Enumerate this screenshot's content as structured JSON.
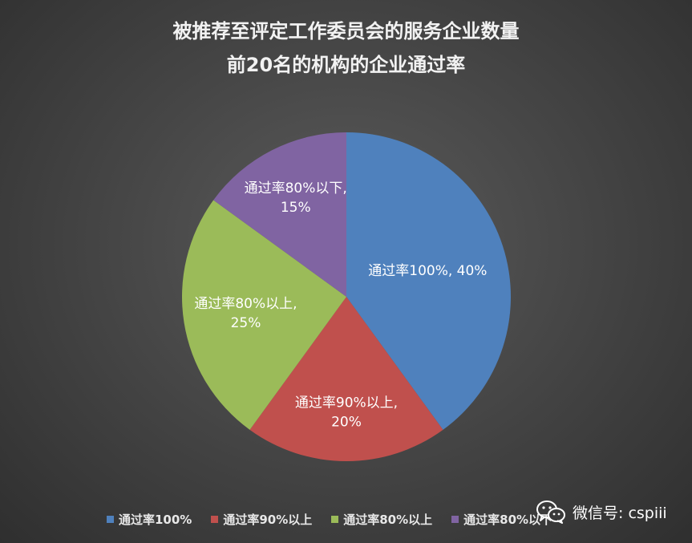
{
  "chart_data": {
    "type": "pie",
    "title_lines": [
      "被推荐至评定工作委员会的服务企业数量",
      "前20名的机构的企业通过率"
    ],
    "categories": [
      "通过率100%",
      "通过率90%以上",
      "通过率80%以上",
      "通过率80%以下"
    ],
    "values": [
      40,
      20,
      25,
      15
    ],
    "colors": [
      "#4f81bd",
      "#c0504d",
      "#9bbb59",
      "#8064a2"
    ],
    "data_labels": [
      [
        "通过率100%, 40%"
      ],
      [
        "通过率90%以上,",
        "20%"
      ],
      [
        "通过率80%以上,",
        "25%"
      ],
      [
        "通过率80%以下,",
        "15%"
      ]
    ],
    "start_angle_deg": 0,
    "direction": "clockwise",
    "legend_position": "bottom"
  },
  "watermark": {
    "icon": "wechat-icon",
    "text": "微信号: cspiii"
  }
}
